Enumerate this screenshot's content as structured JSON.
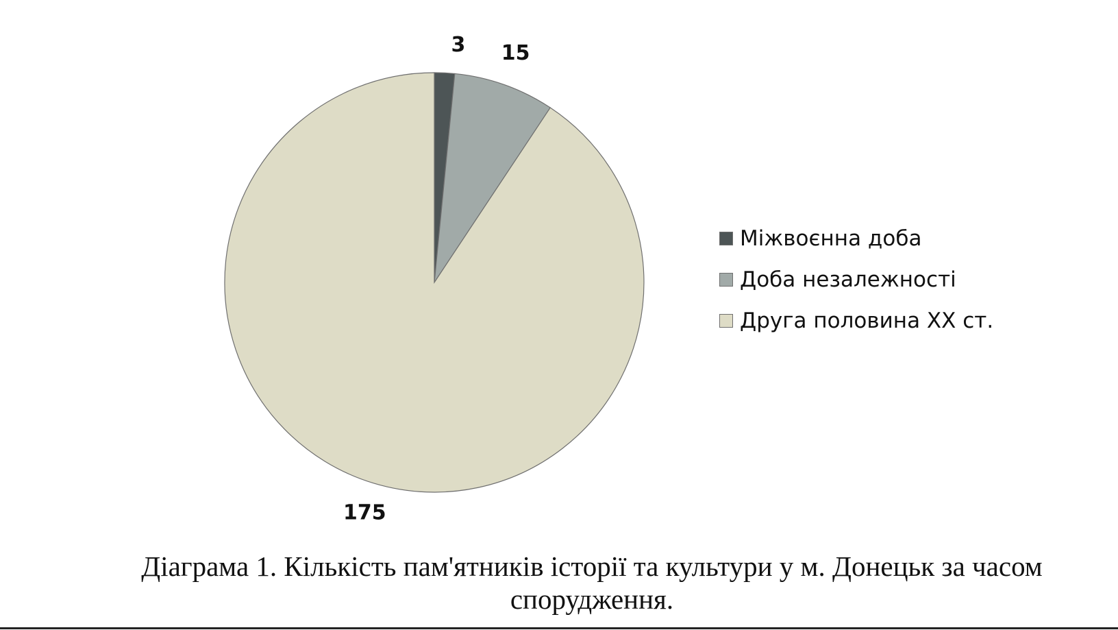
{
  "chart_data": {
    "type": "pie",
    "categories": [
      "Міжвоєнна доба",
      "Доба незалежності",
      "Друга половина XX ст."
    ],
    "values": [
      3,
      15,
      175
    ],
    "data_labels": [
      "3",
      "15",
      "175"
    ],
    "colors": [
      "#4d5556",
      "#a1aaa8",
      "#dedcc6"
    ],
    "start_angle": "12 o'clock",
    "direction": "clockwise",
    "legend_position": "right"
  },
  "caption": {
    "line1": "Діаграма 1. Кількість пам'ятників історії та культури у м. Донецьк за часом",
    "line2": "спорудження."
  }
}
